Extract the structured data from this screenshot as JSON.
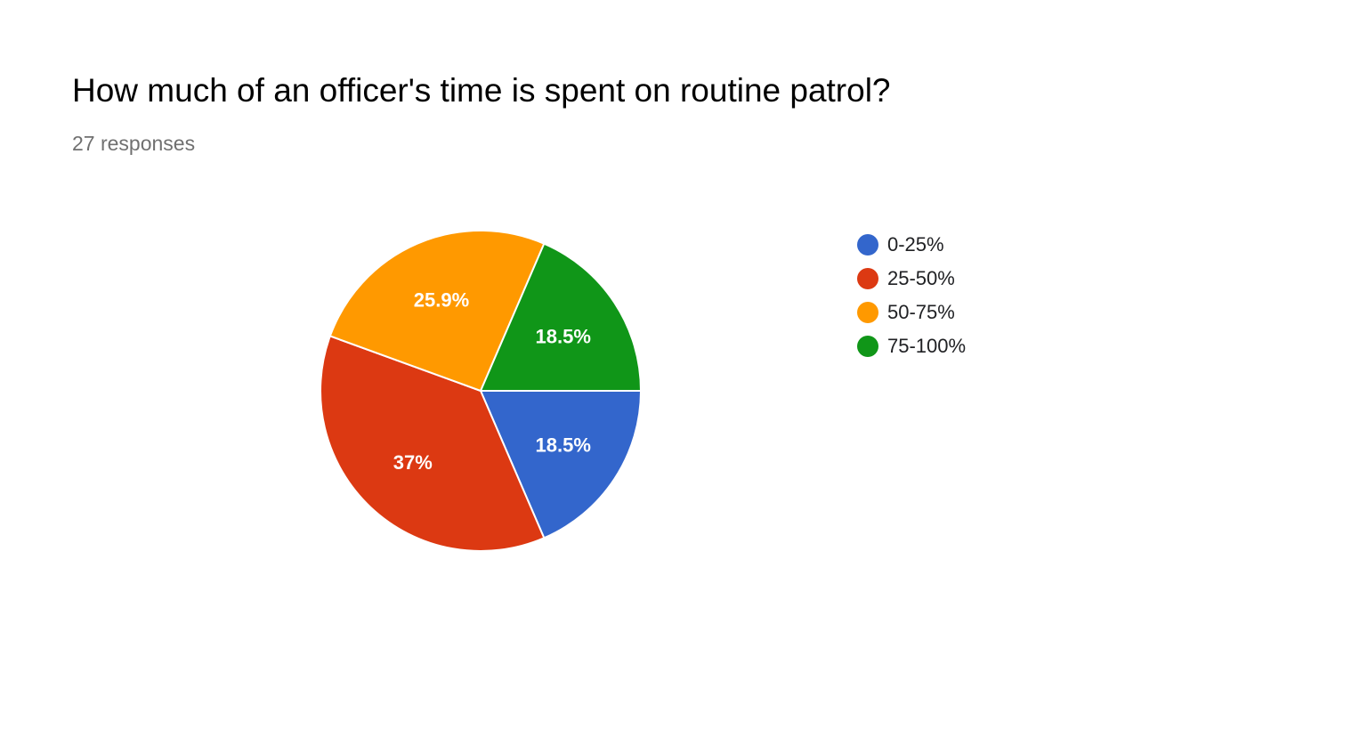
{
  "question": {
    "title": "How much of an officer's time is spent on routine patrol?",
    "responses_label": "27 responses"
  },
  "chart_data": {
    "type": "pie",
    "title": "How much of an officer's time is spent on routine patrol?",
    "subtitle": "27 responses",
    "legend_position": "right",
    "slices": [
      {
        "label": "0-25%",
        "value": 18.5,
        "display": "18.5%",
        "color": "#3366cc"
      },
      {
        "label": "25-50%",
        "value": 37.0,
        "display": "37%",
        "color": "#dc3912"
      },
      {
        "label": "50-75%",
        "value": 25.9,
        "display": "25.9%",
        "color": "#ff9900"
      },
      {
        "label": "75-100%",
        "value": 18.5,
        "display": "18.5%",
        "color": "#109618"
      }
    ]
  }
}
